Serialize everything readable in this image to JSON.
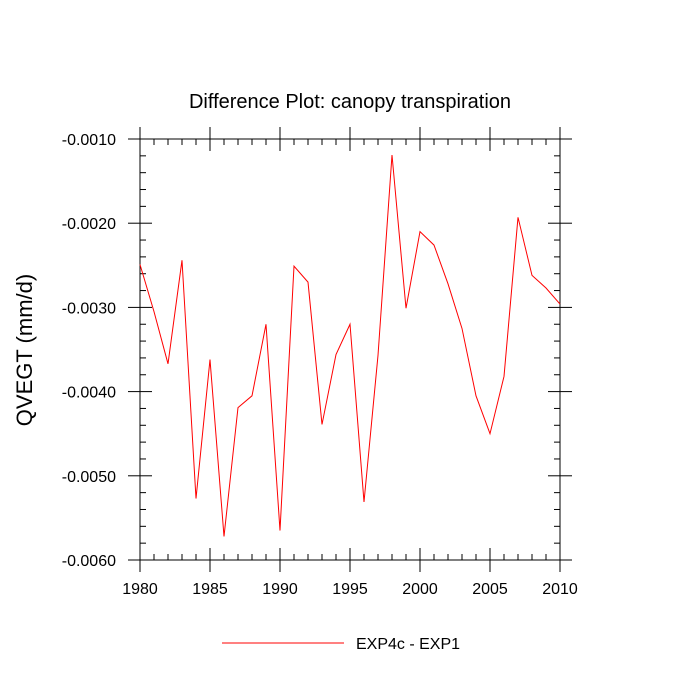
{
  "chart_data": {
    "type": "line",
    "title": "Difference Plot: canopy transpiration",
    "xlabel": "",
    "ylabel": "QVEGT  (mm/d)",
    "xlim": [
      1980,
      2010
    ],
    "ylim": [
      -0.006,
      -0.001
    ],
    "x_ticks": [
      1980,
      1985,
      1990,
      1995,
      2000,
      2005,
      2010
    ],
    "x_tick_labels": [
      "1980",
      "1985",
      "1990",
      "1995",
      "2000",
      "2005",
      "2010"
    ],
    "y_ticks": [
      -0.001,
      -0.002,
      -0.003,
      -0.004,
      -0.005,
      -0.006
    ],
    "y_tick_labels": [
      "-0.0010",
      "-0.0020",
      "-0.0030",
      "-0.0040",
      "-0.0050",
      "-0.0060"
    ],
    "x_minor_step": 1,
    "y_minor_step": 0.0002,
    "grid": false,
    "legend_position": "bottom-center",
    "series": [
      {
        "name": "EXP4c - EXP1",
        "color": "#ff0000",
        "x": [
          1980,
          1981,
          1982,
          1983,
          1984,
          1985,
          1986,
          1987,
          1988,
          1989,
          1990,
          1991,
          1992,
          1993,
          1994,
          1995,
          1996,
          1997,
          1998,
          1999,
          2000,
          2001,
          2002,
          2003,
          2004,
          2005,
          2006,
          2007,
          2008,
          2009,
          2010
        ],
        "y": [
          -0.00249,
          -0.00305,
          -0.00367,
          -0.00244,
          -0.00527,
          -0.00362,
          -0.00572,
          -0.00419,
          -0.00405,
          -0.0032,
          -0.00565,
          -0.00251,
          -0.0027,
          -0.00439,
          -0.00356,
          -0.0032,
          -0.00531,
          -0.00357,
          -0.00119,
          -0.00301,
          -0.0021,
          -0.00226,
          -0.00272,
          -0.00325,
          -0.00405,
          -0.0045,
          -0.00382,
          -0.00193,
          -0.00262,
          -0.00277,
          -0.00296
        ]
      }
    ]
  }
}
